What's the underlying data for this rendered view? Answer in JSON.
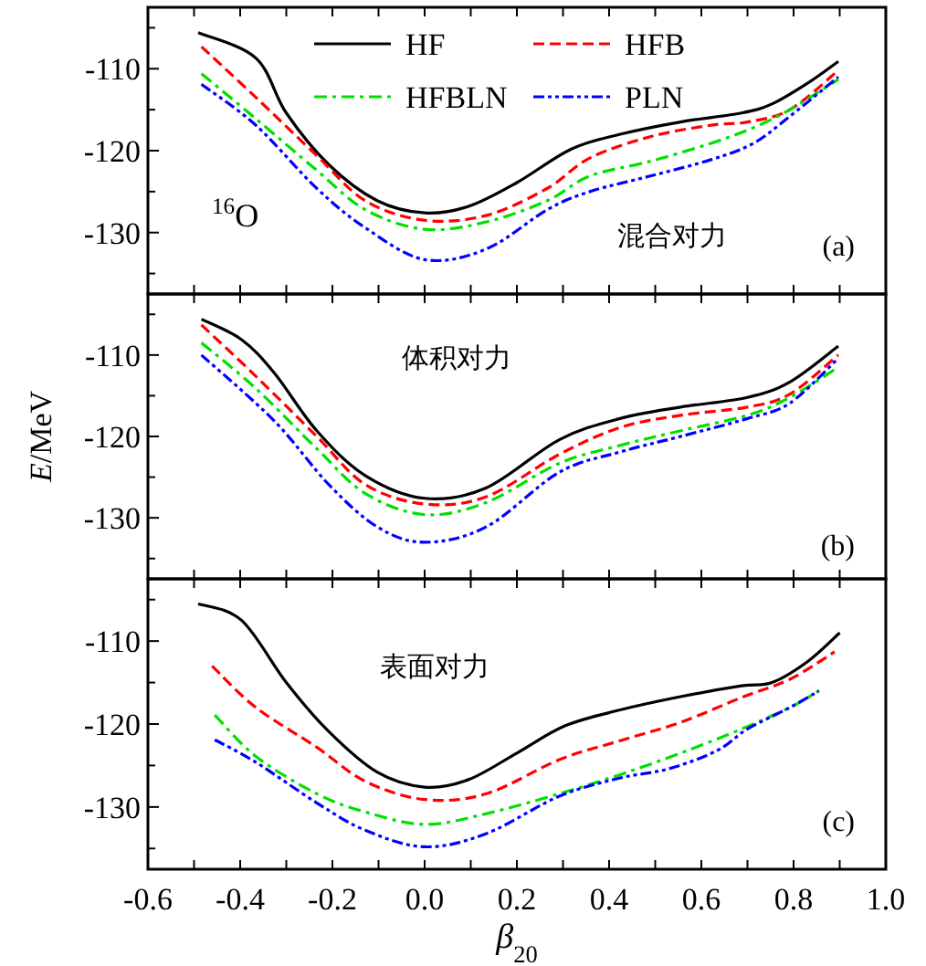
{
  "chart_data": [
    {
      "type": "line",
      "xlim": [
        -0.6,
        1.0
      ],
      "ylim": [
        -137.5,
        -102.5
      ],
      "xticks": [
        {
          "value": -0.6,
          "label": null
        },
        {
          "value": -0.5,
          "label": null
        },
        {
          "value": -0.4,
          "label": null
        },
        {
          "value": -0.3,
          "label": null
        },
        {
          "value": -0.2,
          "label": null
        },
        {
          "value": -0.1,
          "label": null
        },
        {
          "value": 0,
          "label": null
        },
        {
          "value": 0.1,
          "label": null
        },
        {
          "value": 0.2,
          "label": null
        },
        {
          "value": 0.3,
          "label": null
        },
        {
          "value": 0.4,
          "label": null
        },
        {
          "value": 0.5,
          "label": null
        },
        {
          "value": 0.6,
          "label": null
        },
        {
          "value": 0.7,
          "label": null
        },
        {
          "value": 0.8,
          "label": null
        },
        {
          "value": 0.9,
          "label": null
        },
        {
          "value": 1.0,
          "label": null
        }
      ],
      "yticks": [
        {
          "value": -135,
          "label": null
        },
        -130,
        {
          "value": -125,
          "label": null
        },
        -120,
        {
          "value": -115,
          "label": null
        },
        -110,
        {
          "value": -105,
          "label": null
        }
      ],
      "tick_labels": "y",
      "legend": "top",
      "annotations": [
        "$^{16}$O",
        "混合对力",
        "(a)"
      ],
      "series": [
        {
          "name": "HF",
          "color": "#000000",
          "line_style": "solid",
          "x": [
            -0.491,
            -0.366,
            -0.3,
            -0.208,
            -0.103,
            0,
            0.095,
            0.2,
            0.318,
            0.424,
            0.555,
            0.687,
            0.753,
            0.832,
            0.897
          ],
          "values": [
            -105.6,
            -108.7,
            -115.4,
            -121.7,
            -126.1,
            -127.6,
            -126.8,
            -123.9,
            -119.8,
            -118.0,
            -116.5,
            -115.4,
            -114.3,
            -111.7,
            -109.1
          ]
        },
        {
          "name": "HFB",
          "color": "#ff0000",
          "line_style": "dashed",
          "x": [
            -0.484,
            -0.366,
            -0.234,
            -0.129,
            0,
            0.134,
            0.266,
            0.358,
            0.489,
            0.621,
            0.7,
            0.792,
            0.897
          ],
          "values": [
            -107.3,
            -113.5,
            -120.6,
            -126.1,
            -128.5,
            -127.9,
            -124.6,
            -120.9,
            -118.3,
            -116.9,
            -116.5,
            -115.0,
            -110.2
          ]
        },
        {
          "name": "HFBLN",
          "color": "#00e000",
          "line_style": "dashdot",
          "x": [
            -0.484,
            -0.366,
            -0.234,
            -0.129,
            0,
            0.134,
            0.266,
            0.358,
            0.489,
            0.621,
            0.713,
            0.792,
            0.897
          ],
          "values": [
            -110.6,
            -116.1,
            -122.4,
            -127.2,
            -129.6,
            -128.7,
            -126.1,
            -123.1,
            -121.3,
            -119.1,
            -117.2,
            -115.0,
            -111.3
          ]
        },
        {
          "name": "PLN",
          "color": "#0000ff",
          "line_style": "dashdotdot",
          "x": [
            -0.484,
            -0.366,
            -0.234,
            -0.129,
            0,
            0.134,
            0.266,
            0.358,
            0.489,
            0.621,
            0.713,
            0.792,
            0.897
          ],
          "values": [
            -111.9,
            -116.9,
            -124.6,
            -129.4,
            -133.3,
            -132.0,
            -127.2,
            -125.0,
            -123.1,
            -121.1,
            -119.1,
            -115.8,
            -111.0
          ]
        }
      ]
    },
    {
      "type": "line",
      "xlim": [
        -0.6,
        1.0
      ],
      "ylim": [
        -137.5,
        -102.5
      ],
      "xticks": [
        {
          "value": -0.6,
          "label": null
        },
        {
          "value": -0.5,
          "label": null
        },
        {
          "value": -0.4,
          "label": null
        },
        {
          "value": -0.3,
          "label": null
        },
        {
          "value": -0.2,
          "label": null
        },
        {
          "value": -0.1,
          "label": null
        },
        {
          "value": 0,
          "label": null
        },
        {
          "value": 0.1,
          "label": null
        },
        {
          "value": 0.2,
          "label": null
        },
        {
          "value": 0.3,
          "label": null
        },
        {
          "value": 0.4,
          "label": null
        },
        {
          "value": 0.5,
          "label": null
        },
        {
          "value": 0.6,
          "label": null
        },
        {
          "value": 0.7,
          "label": null
        },
        {
          "value": 0.8,
          "label": null
        },
        {
          "value": 0.9,
          "label": null
        },
        {
          "value": 1.0,
          "label": null
        }
      ],
      "yticks": [
        {
          "value": -135,
          "label": null
        },
        -130,
        {
          "value": -125,
          "label": null
        },
        -120,
        {
          "value": -115,
          "label": null
        },
        -110,
        {
          "value": -105,
          "label": null
        }
      ],
      "tick_labels": "y",
      "ylabel": "*E*/MeV",
      "annotations": [
        "体积对力",
        "(b)"
      ],
      "series": [
        {
          "color": "#000000",
          "line_style": "solid",
          "x": [
            -0.484,
            -0.397,
            -0.326,
            -0.234,
            -0.129,
            0,
            0.134,
            0.292,
            0.424,
            0.555,
            0.7,
            0.792,
            0.897
          ],
          "values": [
            -105.6,
            -108.1,
            -112.2,
            -119.3,
            -124.8,
            -127.6,
            -126.3,
            -120.4,
            -117.8,
            -116.4,
            -115.2,
            -113.3,
            -108.9
          ]
        },
        {
          "color": "#ff0000",
          "line_style": "dashed",
          "x": [
            -0.484,
            -0.366,
            -0.234,
            -0.129,
            0,
            0.134,
            0.292,
            0.424,
            0.555,
            0.7,
            0.792,
            0.897
          ],
          "values": [
            -106.3,
            -112.6,
            -120.0,
            -125.9,
            -128.3,
            -127.4,
            -122.2,
            -118.9,
            -117.4,
            -116.4,
            -114.8,
            -110.0
          ]
        },
        {
          "color": "#00e000",
          "line_style": "dashdot",
          "x": [
            -0.484,
            -0.366,
            -0.234,
            -0.129,
            0,
            0.134,
            0.292,
            0.424,
            0.555,
            0.7,
            0.792,
            0.897
          ],
          "values": [
            -108.5,
            -114.1,
            -121.5,
            -127.0,
            -129.6,
            -128.1,
            -123.3,
            -121.1,
            -119.3,
            -117.4,
            -115.2,
            -111.5
          ]
        },
        {
          "color": "#0000ff",
          "line_style": "dashdotdot",
          "x": [
            -0.484,
            -0.326,
            -0.208,
            -0.103,
            0,
            0.134,
            0.292,
            0.424,
            0.555,
            0.7,
            0.792,
            0.897
          ],
          "values": [
            -110.0,
            -118.1,
            -125.9,
            -131.1,
            -133.0,
            -131.1,
            -124.4,
            -121.9,
            -120.0,
            -117.8,
            -115.9,
            -110.4
          ]
        }
      ]
    },
    {
      "type": "line",
      "xlim": [
        -0.6,
        1.0
      ],
      "ylim": [
        -137.5,
        -102.5
      ],
      "xticks": [
        {
          "value": -0.6,
          "label": "-0.6"
        },
        {
          "value": -0.5,
          "label": null
        },
        {
          "value": -0.4,
          "label": "-0.4"
        },
        {
          "value": -0.3,
          "label": null
        },
        {
          "value": -0.2,
          "label": "-0.2"
        },
        {
          "value": -0.1,
          "label": null
        },
        {
          "value": 0,
          "label": "0.0"
        },
        {
          "value": 0.1,
          "label": null
        },
        {
          "value": 0.2,
          "label": "0.2"
        },
        {
          "value": 0.3,
          "label": null
        },
        {
          "value": 0.4,
          "label": "0.4"
        },
        {
          "value": 0.5,
          "label": null
        },
        {
          "value": 0.6,
          "label": "0.6"
        },
        {
          "value": 0.7,
          "label": null
        },
        {
          "value": 0.8,
          "label": "0.8"
        },
        {
          "value": 0.9,
          "label": null
        },
        {
          "value": 1.0,
          "label": "1.0"
        }
      ],
      "yticks": [
        {
          "value": -135,
          "label": null
        },
        -130,
        {
          "value": -125,
          "label": null
        },
        -120,
        {
          "value": -115,
          "label": null
        },
        -110,
        {
          "value": -105,
          "label": null
        }
      ],
      "xlabel": "*β*$_{20}$",
      "annotations": [
        "表面对力",
        "(c)"
      ],
      "series": [
        {
          "color": "#000000",
          "line_style": "solid",
          "x": [
            -0.491,
            -0.397,
            -0.3,
            -0.208,
            -0.103,
            0,
            0.095,
            0.2,
            0.305,
            0.424,
            0.555,
            0.687,
            0.753,
            0.832,
            0.9
          ],
          "values": [
            -105.5,
            -107.5,
            -115.0,
            -120.9,
            -125.8,
            -127.6,
            -126.7,
            -123.5,
            -120.2,
            -118.3,
            -116.7,
            -115.4,
            -115.0,
            -112.4,
            -109.0
          ]
        },
        {
          "color": "#ff0000",
          "line_style": "dashed",
          "x": [
            -0.461,
            -0.366,
            -0.234,
            -0.129,
            0,
            0.134,
            0.292,
            0.424,
            0.555,
            0.687,
            0.792,
            0.889
          ],
          "values": [
            -113.0,
            -118.0,
            -122.8,
            -126.9,
            -129.1,
            -128.4,
            -124.3,
            -122.0,
            -119.8,
            -116.8,
            -114.6,
            -111.3
          ]
        },
        {
          "color": "#00e000",
          "line_style": "dashdot",
          "x": [
            -0.455,
            -0.366,
            -0.234,
            -0.129,
            0,
            0.134,
            0.292,
            0.424,
            0.555,
            0.687,
            0.792,
            0.855
          ],
          "values": [
            -118.9,
            -123.9,
            -128.4,
            -130.6,
            -132.1,
            -130.8,
            -128.4,
            -126.1,
            -123.5,
            -120.6,
            -118.0,
            -116.0
          ]
        },
        {
          "color": "#0000ff",
          "line_style": "dashdotdot",
          "x": [
            -0.455,
            -0.366,
            -0.234,
            -0.129,
            0,
            0.134,
            0.292,
            0.424,
            0.529,
            0.634,
            0.7,
            0.792,
            0.855
          ],
          "values": [
            -121.9,
            -124.6,
            -129.5,
            -132.8,
            -134.8,
            -133.2,
            -128.7,
            -126.5,
            -125.4,
            -123.2,
            -120.6,
            -118.0,
            -116.0
          ]
        }
      ]
    }
  ]
}
